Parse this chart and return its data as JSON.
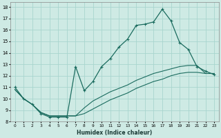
{
  "xlabel": "Humidex (Indice chaleur)",
  "xlim": [
    -0.5,
    23.5
  ],
  "ylim": [
    8,
    18.4
  ],
  "yticks": [
    8,
    9,
    10,
    11,
    12,
    13,
    14,
    15,
    16,
    17,
    18
  ],
  "xticks": [
    0,
    1,
    2,
    3,
    4,
    5,
    6,
    7,
    8,
    9,
    10,
    11,
    12,
    13,
    14,
    15,
    16,
    17,
    18,
    19,
    20,
    21,
    22,
    23
  ],
  "bg_color": "#ceeae4",
  "grid_color": "#a8d5ce",
  "line_color": "#1a6b5e",
  "line1_x": [
    0,
    1,
    2,
    3,
    4,
    5,
    6,
    7,
    8,
    9,
    10,
    11,
    12,
    13,
    14,
    15,
    16,
    17,
    18,
    19,
    20,
    21,
    22,
    23
  ],
  "line1_y": [
    11,
    10,
    9.5,
    8.7,
    8.4,
    8.4,
    8.4,
    12.8,
    10.7,
    11.5,
    12.8,
    13.5,
    14.5,
    15.2,
    16.4,
    16.5,
    16.7,
    17.8,
    16.8,
    14.9,
    14.3,
    12.8,
    12.4,
    12.1
  ],
  "line2_x": [
    0,
    1,
    2,
    3,
    4,
    5,
    6,
    7,
    8,
    9,
    10,
    11,
    12,
    13,
    14,
    15,
    16,
    17,
    18,
    19,
    20,
    21,
    22,
    23
  ],
  "line2_y": [
    10.8,
    10.0,
    9.5,
    8.8,
    8.5,
    8.5,
    8.5,
    8.5,
    9.2,
    9.8,
    10.2,
    10.6,
    10.9,
    11.2,
    11.6,
    11.9,
    12.2,
    12.4,
    12.6,
    12.8,
    12.9,
    12.9,
    12.2,
    12.2
  ],
  "line3_x": [
    0,
    1,
    2,
    3,
    4,
    5,
    6,
    7,
    8,
    9,
    10,
    11,
    12,
    13,
    14,
    15,
    16,
    17,
    18,
    19,
    20,
    21,
    22,
    23
  ],
  "line3_y": [
    10.8,
    10.0,
    9.5,
    8.8,
    8.5,
    8.5,
    8.5,
    8.5,
    8.7,
    9.1,
    9.5,
    9.9,
    10.2,
    10.5,
    10.9,
    11.2,
    11.5,
    11.7,
    12.0,
    12.2,
    12.3,
    12.3,
    12.2,
    12.2
  ],
  "marker1_x": [
    0,
    1,
    2,
    3,
    4,
    5,
    6,
    7,
    8,
    9,
    10,
    11,
    12,
    13,
    14,
    15,
    16,
    17,
    18,
    19,
    20,
    21,
    22,
    23
  ],
  "marker1_y": [
    11,
    10,
    9.5,
    8.7,
    8.4,
    8.4,
    8.4,
    12.8,
    10.7,
    11.5,
    12.8,
    13.5,
    14.5,
    15.2,
    16.4,
    16.5,
    16.7,
    17.8,
    16.8,
    14.9,
    14.3,
    12.8,
    12.4,
    12.1
  ]
}
